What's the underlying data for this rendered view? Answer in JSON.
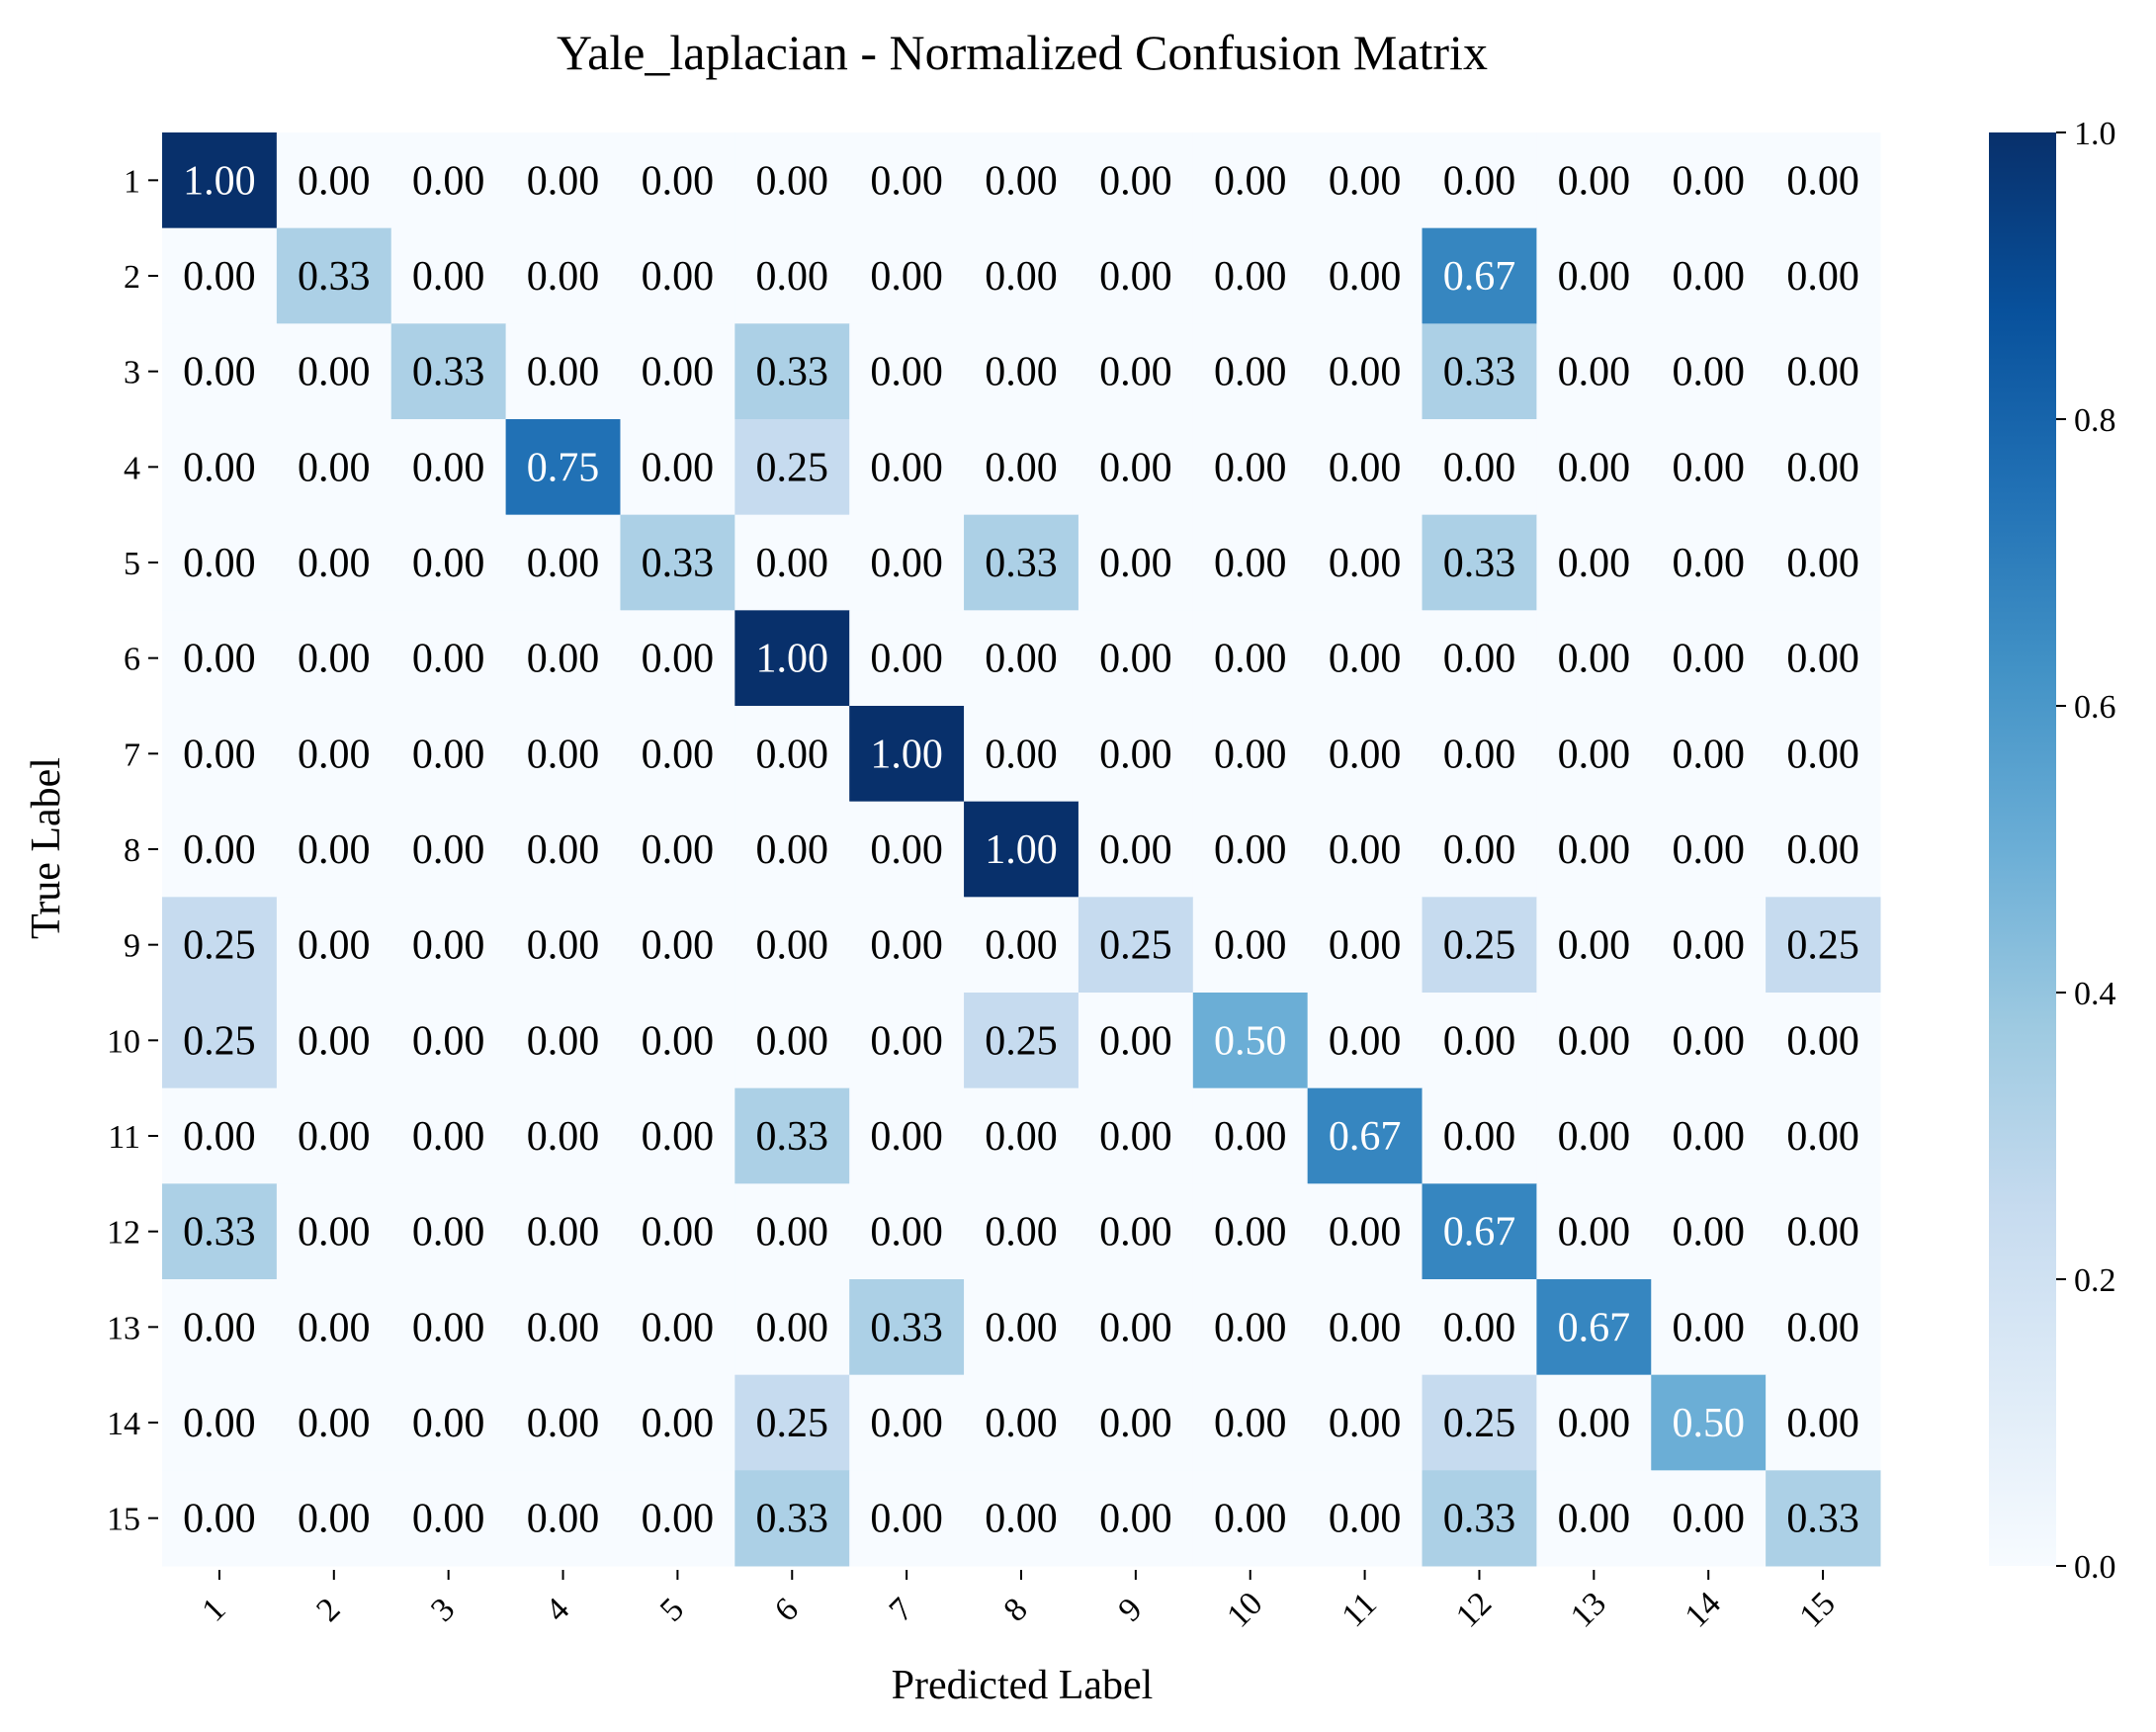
{
  "chart_data": {
    "type": "heatmap",
    "title": "Yale_laplacian - Normalized Confusion Matrix",
    "xlabel": "Predicted Label",
    "ylabel": "True Label",
    "x_categories": [
      "1",
      "2",
      "3",
      "4",
      "5",
      "6",
      "7",
      "8",
      "9",
      "10",
      "11",
      "12",
      "13",
      "14",
      "15"
    ],
    "y_categories": [
      "1",
      "2",
      "3",
      "4",
      "5",
      "6",
      "7",
      "8",
      "9",
      "10",
      "11",
      "12",
      "13",
      "14",
      "15"
    ],
    "values": [
      [
        1.0,
        0.0,
        0.0,
        0.0,
        0.0,
        0.0,
        0.0,
        0.0,
        0.0,
        0.0,
        0.0,
        0.0,
        0.0,
        0.0,
        0.0
      ],
      [
        0.0,
        0.33,
        0.0,
        0.0,
        0.0,
        0.0,
        0.0,
        0.0,
        0.0,
        0.0,
        0.0,
        0.67,
        0.0,
        0.0,
        0.0
      ],
      [
        0.0,
        0.0,
        0.33,
        0.0,
        0.0,
        0.33,
        0.0,
        0.0,
        0.0,
        0.0,
        0.0,
        0.33,
        0.0,
        0.0,
        0.0
      ],
      [
        0.0,
        0.0,
        0.0,
        0.75,
        0.0,
        0.25,
        0.0,
        0.0,
        0.0,
        0.0,
        0.0,
        0.0,
        0.0,
        0.0,
        0.0
      ],
      [
        0.0,
        0.0,
        0.0,
        0.0,
        0.33,
        0.0,
        0.0,
        0.33,
        0.0,
        0.0,
        0.0,
        0.33,
        0.0,
        0.0,
        0.0
      ],
      [
        0.0,
        0.0,
        0.0,
        0.0,
        0.0,
        1.0,
        0.0,
        0.0,
        0.0,
        0.0,
        0.0,
        0.0,
        0.0,
        0.0,
        0.0
      ],
      [
        0.0,
        0.0,
        0.0,
        0.0,
        0.0,
        0.0,
        1.0,
        0.0,
        0.0,
        0.0,
        0.0,
        0.0,
        0.0,
        0.0,
        0.0
      ],
      [
        0.0,
        0.0,
        0.0,
        0.0,
        0.0,
        0.0,
        0.0,
        1.0,
        0.0,
        0.0,
        0.0,
        0.0,
        0.0,
        0.0,
        0.0
      ],
      [
        0.25,
        0.0,
        0.0,
        0.0,
        0.0,
        0.0,
        0.0,
        0.0,
        0.25,
        0.0,
        0.0,
        0.25,
        0.0,
        0.0,
        0.25
      ],
      [
        0.25,
        0.0,
        0.0,
        0.0,
        0.0,
        0.0,
        0.0,
        0.25,
        0.0,
        0.5,
        0.0,
        0.0,
        0.0,
        0.0,
        0.0
      ],
      [
        0.0,
        0.0,
        0.0,
        0.0,
        0.0,
        0.33,
        0.0,
        0.0,
        0.0,
        0.0,
        0.67,
        0.0,
        0.0,
        0.0,
        0.0
      ],
      [
        0.33,
        0.0,
        0.0,
        0.0,
        0.0,
        0.0,
        0.0,
        0.0,
        0.0,
        0.0,
        0.0,
        0.67,
        0.0,
        0.0,
        0.0
      ],
      [
        0.0,
        0.0,
        0.0,
        0.0,
        0.0,
        0.0,
        0.33,
        0.0,
        0.0,
        0.0,
        0.0,
        0.0,
        0.67,
        0.0,
        0.0
      ],
      [
        0.0,
        0.0,
        0.0,
        0.0,
        0.0,
        0.25,
        0.0,
        0.0,
        0.0,
        0.0,
        0.0,
        0.25,
        0.0,
        0.5,
        0.0
      ],
      [
        0.0,
        0.0,
        0.0,
        0.0,
        0.0,
        0.33,
        0.0,
        0.0,
        0.0,
        0.0,
        0.0,
        0.33,
        0.0,
        0.0,
        0.33
      ]
    ],
    "colorbar": {
      "range": [
        0.0,
        1.0
      ],
      "ticks": [
        "0.0",
        "0.2",
        "0.4",
        "0.6",
        "0.8",
        "1.0"
      ],
      "colormap": "Blues",
      "color_low": "#f7fbff",
      "color_high": "#08306b"
    },
    "grid": false
  }
}
